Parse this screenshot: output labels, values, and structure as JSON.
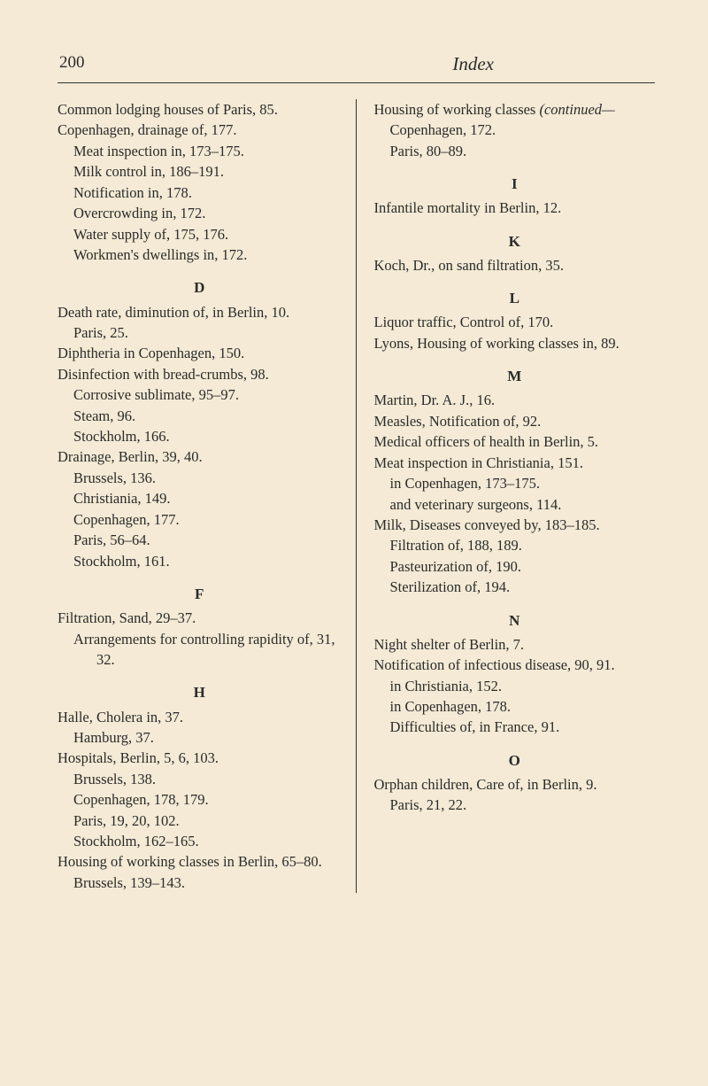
{
  "header": {
    "page_number": "200",
    "title": "Index"
  },
  "left_column": {
    "entries_top": [
      "Common lodging houses of Paris, 85.",
      "Copenhagen, drainage of, 177.",
      "Meat inspection in, 173–175.",
      "Milk control in, 186–191.",
      "Notification in, 178.",
      "Overcrowding in, 172.",
      "Water supply of, 175, 176.",
      "Workmen's dwellings in, 172."
    ],
    "letter_D": "D",
    "entries_D": [
      "Death rate, diminution of, in Berlin, 10.",
      "Paris, 25.",
      "Diphtheria in Copenhagen, 150.",
      "Disinfection with bread-crumbs, 98.",
      "Corrosive sublimate, 95–97.",
      "Steam, 96.",
      "Stockholm, 166.",
      "Drainage, Berlin, 39, 40.",
      "Brussels, 136.",
      "Christiania, 149.",
      "Copenhagen, 177.",
      "Paris, 56–64.",
      "Stockholm, 161."
    ],
    "letter_F": "F",
    "entries_F": [
      "Filtration, Sand, 29–37.",
      "Arrangements for controlling rapidity of, 31, 32."
    ],
    "letter_H": "H",
    "entries_H": [
      "Halle, Cholera in, 37.",
      "Hamburg, 37.",
      "Hospitals, Berlin, 5, 6, 103.",
      "Brussels, 138.",
      "Copenhagen, 178, 179.",
      "Paris, 19, 20, 102.",
      "Stockholm, 162–165.",
      "Housing of working classes in Berlin, 65–80.",
      "Brussels, 139–143."
    ]
  },
  "right_column": {
    "entries_top": [
      "Housing of working classes ",
      "(continued—",
      "Copenhagen, 172.",
      "Paris, 80–89."
    ],
    "letter_I": "I",
    "entries_I": [
      "Infantile mortality in Berlin, 12."
    ],
    "letter_K": "K",
    "entries_K": [
      "Koch, Dr., on sand filtration, 35."
    ],
    "letter_L": "L",
    "entries_L": [
      "Liquor traffic, Control of, 170.",
      "Lyons, Housing of working classes in, 89."
    ],
    "letter_M": "M",
    "entries_M": [
      "Martin, Dr. A. J., 16.",
      "Measles, Notification of, 92.",
      "Medical officers of health in Berlin, 5.",
      "Meat inspection in Christiania, 151.",
      "in Copenhagen, 173–175.",
      "and veterinary surgeons, 114.",
      "Milk, Diseases conveyed by, 183–185.",
      "Filtration of, 188, 189.",
      "Pasteurization of, 190.",
      "Sterilization of, 194."
    ],
    "letter_N": "N",
    "entries_N": [
      "Night shelter of Berlin, 7.",
      "Notification of infectious disease, 90, 91.",
      "in Christiania, 152.",
      "in Copenhagen, 178.",
      "Difficulties of, in France, 91."
    ],
    "letter_O": "O",
    "entries_O": [
      "Orphan children, Care of, in Berlin, 9.",
      "Paris, 21, 22."
    ]
  }
}
